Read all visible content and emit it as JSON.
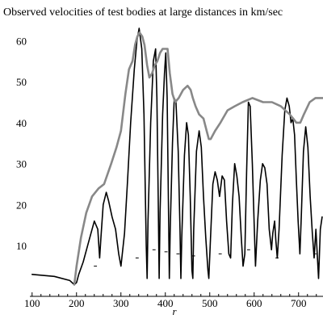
{
  "chart_data": {
    "type": "line",
    "title": "Observed velocities of test bodies at large distances in km/sec",
    "xlabel": "r",
    "ylabel": "",
    "xlim": [
      95,
      755
    ],
    "ylim": [
      0,
      64
    ],
    "x_ticks": [
      100,
      200,
      300,
      400,
      500,
      600,
      700
    ],
    "y_ticks": [
      10,
      20,
      30,
      40,
      50,
      60
    ],
    "grid": false,
    "series": [
      {
        "color": "#000000",
        "points": [
          [
            100,
            3
          ],
          [
            150,
            2.5
          ],
          [
            185,
            1.5
          ],
          [
            195,
            0.5
          ],
          [
            200,
            1
          ],
          [
            205,
            3
          ],
          [
            215,
            6
          ],
          [
            225,
            10
          ],
          [
            240,
            16
          ],
          [
            248,
            14
          ],
          [
            252,
            7
          ],
          [
            255,
            12
          ],
          [
            260,
            20
          ],
          [
            267,
            23
          ],
          [
            272,
            21
          ],
          [
            280,
            17
          ],
          [
            288,
            14
          ],
          [
            295,
            8
          ],
          [
            300,
            5
          ],
          [
            308,
            13
          ],
          [
            315,
            26
          ],
          [
            322,
            40
          ],
          [
            330,
            53
          ],
          [
            336,
            60
          ],
          [
            341,
            63
          ],
          [
            347,
            58
          ],
          [
            352,
            42
          ],
          [
            357,
            10
          ],
          [
            359,
            2
          ],
          [
            361,
            16
          ],
          [
            367,
            40
          ],
          [
            373,
            55
          ],
          [
            378,
            58
          ],
          [
            381,
            46
          ],
          [
            384,
            22
          ],
          [
            386,
            2
          ],
          [
            388,
            18
          ],
          [
            394,
            42
          ],
          [
            398,
            52
          ],
          [
            401,
            57
          ],
          [
            404,
            46
          ],
          [
            407,
            20
          ],
          [
            409,
            2
          ],
          [
            411,
            14
          ],
          [
            416,
            35
          ],
          [
            420,
            46
          ],
          [
            424,
            45
          ],
          [
            429,
            33
          ],
          [
            433,
            14
          ],
          [
            435,
            2
          ],
          [
            437,
            12
          ],
          [
            443,
            32
          ],
          [
            448,
            40
          ],
          [
            452,
            37
          ],
          [
            456,
            22
          ],
          [
            460,
            4
          ],
          [
            462,
            2
          ],
          [
            464,
            14
          ],
          [
            470,
            33
          ],
          [
            476,
            38
          ],
          [
            481,
            34
          ],
          [
            486,
            22
          ],
          [
            491,
            12
          ],
          [
            496,
            4
          ],
          [
            498,
            2
          ],
          [
            501,
            10
          ],
          [
            507,
            25
          ],
          [
            512,
            28
          ],
          [
            517,
            26
          ],
          [
            522,
            22
          ],
          [
            528,
            27
          ],
          [
            533,
            26
          ],
          [
            538,
            16
          ],
          [
            543,
            8
          ],
          [
            547,
            7
          ],
          [
            551,
            20
          ],
          [
            556,
            30
          ],
          [
            561,
            27
          ],
          [
            566,
            22
          ],
          [
            571,
            12
          ],
          [
            575,
            5
          ],
          [
            579,
            8
          ],
          [
            583,
            28
          ],
          [
            587,
            45
          ],
          [
            591,
            44
          ],
          [
            596,
            30
          ],
          [
            600,
            15
          ],
          [
            603,
            5
          ],
          [
            608,
            16
          ],
          [
            614,
            26
          ],
          [
            619,
            30
          ],
          [
            624,
            29
          ],
          [
            629,
            25
          ],
          [
            634,
            14
          ],
          [
            639,
            9
          ],
          [
            642,
            13
          ],
          [
            646,
            16
          ],
          [
            649,
            11
          ],
          [
            652,
            7
          ],
          [
            656,
            14
          ],
          [
            663,
            32
          ],
          [
            669,
            43
          ],
          [
            674,
            46
          ],
          [
            679,
            44
          ],
          [
            683,
            40
          ],
          [
            687,
            41
          ],
          [
            691,
            37
          ],
          [
            695,
            26
          ],
          [
            699,
            16
          ],
          [
            703,
            8
          ],
          [
            706,
            17
          ],
          [
            711,
            33
          ],
          [
            716,
            39
          ],
          [
            721,
            34
          ],
          [
            726,
            22
          ],
          [
            731,
            13
          ],
          [
            735,
            7
          ],
          [
            739,
            14
          ],
          [
            745,
            2
          ],
          [
            749,
            14
          ],
          [
            753,
            17
          ]
        ]
      },
      {
        "color": "#888888",
        "points": [
          [
            195,
            0.5
          ],
          [
            200,
            5
          ],
          [
            210,
            12
          ],
          [
            222,
            18
          ],
          [
            235,
            22
          ],
          [
            250,
            24
          ],
          [
            262,
            25
          ],
          [
            278,
            30
          ],
          [
            290,
            34
          ],
          [
            300,
            38
          ],
          [
            310,
            47
          ],
          [
            318,
            53
          ],
          [
            326,
            55
          ],
          [
            332,
            59
          ],
          [
            337,
            61
          ],
          [
            342,
            62
          ],
          [
            348,
            61
          ],
          [
            353,
            59
          ],
          [
            359,
            54
          ],
          [
            364,
            51
          ],
          [
            370,
            52
          ],
          [
            376,
            54
          ],
          [
            382,
            55
          ],
          [
            388,
            57
          ],
          [
            394,
            58
          ],
          [
            400,
            58
          ],
          [
            405,
            58
          ],
          [
            410,
            52
          ],
          [
            416,
            47
          ],
          [
            422,
            45
          ],
          [
            430,
            46
          ],
          [
            440,
            48
          ],
          [
            450,
            49
          ],
          [
            457,
            48
          ],
          [
            462,
            46
          ],
          [
            468,
            44
          ],
          [
            476,
            42
          ],
          [
            486,
            41
          ],
          [
            493,
            38
          ],
          [
            498,
            36
          ],
          [
            502,
            36
          ],
          [
            512,
            38
          ],
          [
            524,
            40
          ],
          [
            540,
            43
          ],
          [
            556,
            44
          ],
          [
            574,
            45
          ],
          [
            596,
            46
          ],
          [
            620,
            45
          ],
          [
            640,
            45
          ],
          [
            660,
            44
          ],
          [
            680,
            42
          ],
          [
            688,
            41
          ],
          [
            695,
            40
          ],
          [
            704,
            40
          ],
          [
            712,
            42
          ],
          [
            725,
            45
          ],
          [
            738,
            46
          ],
          [
            755,
            46
          ]
        ]
      }
    ],
    "annotations": [
      {
        "type": "dash",
        "x": [
          239,
          246
        ],
        "y": 5
      },
      {
        "type": "dash",
        "x": [
          333,
          340
        ],
        "y": 7
      },
      {
        "type": "dash",
        "x": [
          371,
          378
        ],
        "y": 9
      },
      {
        "type": "dash",
        "x": [
          398,
          405
        ],
        "y": 8.5
      },
      {
        "type": "dash",
        "x": [
          425,
          432
        ],
        "y": 8
      },
      {
        "type": "dash",
        "x": [
          460,
          467
        ],
        "y": 7.5
      },
      {
        "type": "dash",
        "x": [
          520,
          527
        ],
        "y": 8
      },
      {
        "type": "dash",
        "x": [
          584,
          591
        ],
        "y": 9
      },
      {
        "type": "dash",
        "x": [
          648,
          655
        ],
        "y": 7
      },
      {
        "type": "dash",
        "x": [
          733,
          740
        ],
        "y": 8
      }
    ]
  }
}
